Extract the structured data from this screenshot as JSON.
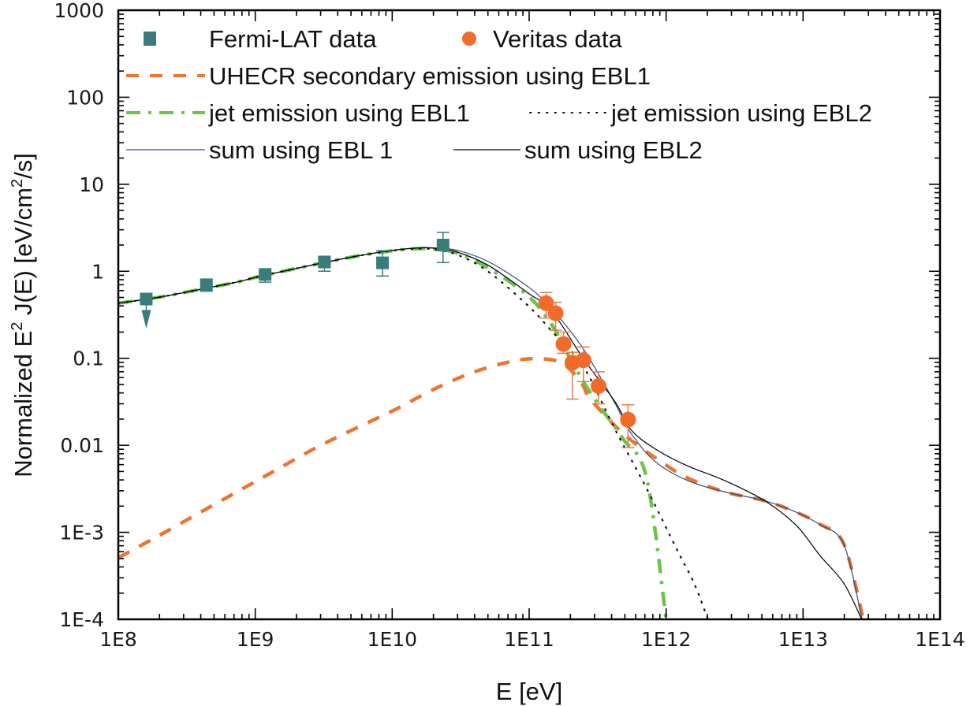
{
  "chart_data": {
    "type": "line",
    "title": "",
    "xlabel": "E [eV]",
    "ylabel_parts": {
      "prefix": "Normalized E",
      "sup1": "2",
      "mid": " J(E) [eV/cm",
      "sup2": "2",
      "suffix": "/s]"
    },
    "ylabel": "Normalized E^2 J(E) [eV/cm^2/s]",
    "x_scale": "log",
    "y_scale": "log",
    "xlim": [
      100000000.0,
      100000000000000.0
    ],
    "ylim": [
      0.0001,
      1000
    ],
    "x_ticks": [
      {
        "value": 100000000.0,
        "label": "1E8"
      },
      {
        "value": 1000000000.0,
        "label": "1E9"
      },
      {
        "value": 10000000000.0,
        "label": "1E10"
      },
      {
        "value": 100000000000.0,
        "label": "1E11"
      },
      {
        "value": 1000000000000.0,
        "label": "1E12"
      },
      {
        "value": 10000000000000.0,
        "label": "1E13"
      },
      {
        "value": 100000000000000.0,
        "label": "1E14"
      }
    ],
    "y_ticks": [
      {
        "value": 1000,
        "label": "1000"
      },
      {
        "value": 100,
        "label": "100"
      },
      {
        "value": 10,
        "label": "10"
      },
      {
        "value": 1,
        "label": "1"
      },
      {
        "value": 0.1,
        "label": "0.1"
      },
      {
        "value": 0.01,
        "label": "0.01"
      },
      {
        "value": 0.001,
        "label": "1E-3"
      },
      {
        "value": 0.0001,
        "label": "1E-4"
      }
    ],
    "grid": false,
    "legend_position": "top-left",
    "colors": {
      "fermi": "#3a7b7b",
      "veritas": "#f26b2a",
      "veritas_err": "#d9814f",
      "uhecr": "#ef7430",
      "jet_ebl1": "#6cc24a",
      "jet_ebl2": "#111111",
      "sum_ebl1": "#2b4e80",
      "sum_ebl2": "#000000",
      "axis": "#000000"
    },
    "legend": [
      {
        "key": "fermi",
        "label": "Fermi-LAT data",
        "symbol": "square"
      },
      {
        "key": "veritas",
        "label": "Veritas data",
        "symbol": "circle"
      },
      {
        "key": "uhecr",
        "label": "UHECR secondary emission using EBL1",
        "symbol": "dash"
      },
      {
        "key": "jet_ebl1",
        "label": "jet emission using EBL1",
        "symbol": "dashdot"
      },
      {
        "key": "jet_ebl2",
        "label": "jet emission using EBL2",
        "symbol": "dot"
      },
      {
        "key": "sum_ebl1",
        "label": "sum using EBL 1",
        "symbol": "solid"
      },
      {
        "key": "sum_ebl2",
        "label": "sum using EBL2",
        "symbol": "solid"
      }
    ],
    "scatter_series": [
      {
        "name": "Fermi-LAT data",
        "key": "fermi",
        "points": [
          {
            "x": 160000000.0,
            "y": 0.48,
            "upper_limit": true,
            "arrow_to": 0.22
          },
          {
            "x": 440000000.0,
            "y": 0.7,
            "err_lo": 0.59,
            "err_hi": 0.8
          },
          {
            "x": 1180000000.0,
            "y": 0.92,
            "err_lo": 0.75,
            "err_hi": 0.98
          },
          {
            "x": 3200000000.0,
            "y": 1.28,
            "err_lo": 1.0,
            "err_hi": 1.38
          },
          {
            "x": 8500000000.0,
            "y": 1.25,
            "err_lo": 0.88,
            "err_hi": 1.72
          },
          {
            "x": 23500000000.0,
            "y": 2.0,
            "err_lo": 1.26,
            "err_hi": 2.8
          }
        ]
      },
      {
        "name": "Veritas data",
        "key": "veritas",
        "points": [
          {
            "x": 133000000000.0,
            "y": 0.43,
            "err_lo": 0.29,
            "err_hi": 0.57
          },
          {
            "x": 156000000000.0,
            "y": 0.33,
            "err_lo": 0.21,
            "err_hi": 0.44
          },
          {
            "x": 178000000000.0,
            "y": 0.146,
            "err_lo": 0.114,
            "err_hi": 0.2
          },
          {
            "x": 207000000000.0,
            "y": 0.089,
            "err_lo": 0.034,
            "err_hi": 0.117
          },
          {
            "x": 249000000000.0,
            "y": 0.095,
            "err_lo": 0.054,
            "err_hi": 0.135
          },
          {
            "x": 321000000000.0,
            "y": 0.048,
            "err_lo": 0.03,
            "err_hi": 0.07
          },
          {
            "x": 527000000000.0,
            "y": 0.0197,
            "err_lo": 0.0094,
            "err_hi": 0.0292
          }
        ]
      }
    ],
    "line_series": [
      {
        "name": "UHECR secondary emission using EBL1",
        "key": "uhecr",
        "style": "dash",
        "points": [
          [
            100000000.0,
            0.00051
          ],
          [
            194000000.0,
            0.0009
          ],
          [
            377000000.0,
            0.00162
          ],
          [
            731000000.0,
            0.0029
          ],
          [
            1420000000.0,
            0.0052
          ],
          [
            2750000000.0,
            0.0093
          ],
          [
            5330000000.0,
            0.0155
          ],
          [
            10400000000.0,
            0.0255
          ],
          [
            20100000000.0,
            0.044
          ],
          [
            39000000000.0,
            0.069
          ],
          [
            76000000000.0,
            0.093
          ],
          [
            112000000000.0,
            0.099
          ],
          [
            160000000000.0,
            0.093
          ],
          [
            200000000000.0,
            0.074
          ],
          [
            247000000000.0,
            0.049
          ],
          [
            266000000000.0,
            0.038
          ],
          [
            325000000000.0,
            0.026
          ],
          [
            425000000000.0,
            0.0167
          ],
          [
            552000000000.0,
            0.0115
          ],
          [
            822000000000.0,
            0.0073
          ],
          [
            1400000000000.0,
            0.0043
          ],
          [
            2710000000000.0,
            0.0029
          ],
          [
            5260000000000.0,
            0.0023
          ],
          [
            8930000000000.0,
            0.0017
          ],
          [
            13300000000000.0,
            0.00124
          ],
          [
            19800000000000.0,
            0.00074
          ],
          [
            27500000000000.0,
            0.0001
          ]
        ]
      },
      {
        "name": "jet emission using EBL1",
        "key": "jet_ebl1",
        "style": "dashdot",
        "points": [
          [
            100000000.0,
            0.43
          ],
          [
            194000000.0,
            0.5
          ],
          [
            377000000.0,
            0.61
          ],
          [
            731000000.0,
            0.75
          ],
          [
            1000000000.0,
            0.85
          ],
          [
            1420000000.0,
            0.96
          ],
          [
            2750000000.0,
            1.2
          ],
          [
            5330000000.0,
            1.48
          ],
          [
            10000000000.0,
            1.72
          ],
          [
            15500000000.0,
            1.82
          ],
          [
            20100000000.0,
            1.8
          ],
          [
            29900000000.0,
            1.62
          ],
          [
            50800000000.0,
            1.08
          ],
          [
            98600000000.0,
            0.52
          ],
          [
            146000000000.0,
            0.243
          ],
          [
            191000000000.0,
            0.112
          ],
          [
            249000000000.0,
            0.054
          ],
          [
            325000000000.0,
            0.0285
          ],
          [
            484000000000.0,
            0.0119
          ],
          [
            720000000000.0,
            0.0042
          ],
          [
            1000000000000.0,
            0.0001
          ]
        ]
      },
      {
        "name": "jet emission using EBL2",
        "key": "jet_ebl2",
        "style": "dot",
        "points": [
          [
            100000000.0,
            0.43
          ],
          [
            194000000.0,
            0.5
          ],
          [
            377000000.0,
            0.61
          ],
          [
            731000000.0,
            0.75
          ],
          [
            1000000000.0,
            0.85
          ],
          [
            1420000000.0,
            0.96
          ],
          [
            2750000000.0,
            1.2
          ],
          [
            5330000000.0,
            1.48
          ],
          [
            10000000000.0,
            1.72
          ],
          [
            15500000000.0,
            1.82
          ],
          [
            20100000000.0,
            1.78
          ],
          [
            29900000000.0,
            1.55
          ],
          [
            50800000000.0,
            0.98
          ],
          [
            98600000000.0,
            0.4
          ],
          [
            146000000000.0,
            0.206
          ],
          [
            249000000000.0,
            0.08
          ],
          [
            424000000000.0,
            0.0152
          ],
          [
            720000000000.0,
            0.0032
          ],
          [
            1220000000000.0,
            0.0006
          ],
          [
            1600000000000.0,
            0.00026
          ],
          [
            2020000000000.0,
            0.0001
          ]
        ]
      },
      {
        "name": "sum using EBL 1",
        "key": "sum_ebl1",
        "style": "solid",
        "points": [
          [
            100000000.0,
            0.43
          ],
          [
            194000000.0,
            0.5
          ],
          [
            377000000.0,
            0.61
          ],
          [
            731000000.0,
            0.75
          ],
          [
            1000000000.0,
            0.85
          ],
          [
            1420000000.0,
            0.96
          ],
          [
            2750000000.0,
            1.2
          ],
          [
            5330000000.0,
            1.48
          ],
          [
            10000000000.0,
            1.74
          ],
          [
            15500000000.0,
            1.86
          ],
          [
            20100000000.0,
            1.86
          ],
          [
            29900000000.0,
            1.74
          ],
          [
            50800000000.0,
            1.28
          ],
          [
            98600000000.0,
            0.66
          ],
          [
            146000000000.0,
            0.37
          ],
          [
            249000000000.0,
            0.128
          ],
          [
            424000000000.0,
            0.0302
          ],
          [
            552000000000.0,
            0.0139
          ],
          [
            822000000000.0,
            0.0066
          ],
          [
            1400000000000.0,
            0.004
          ],
          [
            2710000000000.0,
            0.0029
          ],
          [
            5260000000000.0,
            0.0023
          ],
          [
            8930000000000.0,
            0.0017
          ],
          [
            13300000000000.0,
            0.00122
          ],
          [
            19800000000000.0,
            0.00073
          ],
          [
            27000000000000.0,
            0.0001
          ]
        ]
      },
      {
        "name": "sum using EBL2",
        "key": "sum_ebl2",
        "style": "solid",
        "points": [
          [
            100000000.0,
            0.43
          ],
          [
            194000000.0,
            0.5
          ],
          [
            377000000.0,
            0.61
          ],
          [
            731000000.0,
            0.75
          ],
          [
            1000000000.0,
            0.85
          ],
          [
            1420000000.0,
            0.96
          ],
          [
            2750000000.0,
            1.2
          ],
          [
            5330000000.0,
            1.48
          ],
          [
            10000000000.0,
            1.74
          ],
          [
            15500000000.0,
            1.85
          ],
          [
            20100000000.0,
            1.84
          ],
          [
            29900000000.0,
            1.66
          ],
          [
            50800000000.0,
            1.16
          ],
          [
            98600000000.0,
            0.56
          ],
          [
            146000000000.0,
            0.35
          ],
          [
            249000000000.0,
            0.099
          ],
          [
            424000000000.0,
            0.0315
          ],
          [
            552000000000.0,
            0.0152
          ],
          [
            822000000000.0,
            0.0092
          ],
          [
            1400000000000.0,
            0.0059
          ],
          [
            2710000000000.0,
            0.0039
          ],
          [
            5260000000000.0,
            0.0023
          ],
          [
            8930000000000.0,
            0.0012
          ],
          [
            13300000000000.0,
            0.00054
          ],
          [
            19800000000000.0,
            0.00026
          ],
          [
            26800000000000.0,
            0.0001
          ]
        ]
      }
    ]
  }
}
